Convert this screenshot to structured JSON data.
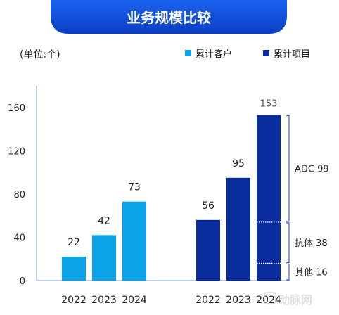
{
  "chart_data": {
    "type": "bar",
    "title": "业务规模比较",
    "unit_label": "(单位:个)",
    "ylim": [
      0,
      180
    ],
    "yticks": [
      0,
      40,
      80,
      120,
      160
    ],
    "grid": false,
    "legend_position": "top-right",
    "legend": [
      {
        "name": "累计客户",
        "color": "#0ba3e8"
      },
      {
        "name": "累计项目",
        "color": "#0a2d9e"
      }
    ],
    "groups": [
      {
        "series": "累计客户",
        "color": "#0ba3e8",
        "categories": [
          "2022",
          "2023",
          "2024"
        ],
        "values": [
          22,
          42,
          73
        ]
      },
      {
        "series": "累计项目",
        "color": "#0a2d9e",
        "categories": [
          "2022",
          "2023",
          "2024"
        ],
        "values": [
          56,
          95,
          153
        ]
      }
    ],
    "stack_2024_projects": [
      {
        "name": "其他",
        "value": 16,
        "label": "其他 16"
      },
      {
        "name": "抗体",
        "value": 38,
        "label": "抗体 38"
      },
      {
        "name": "ADC",
        "value": 99,
        "label": "ADC 99"
      }
    ],
    "watermark": "动脉网"
  }
}
